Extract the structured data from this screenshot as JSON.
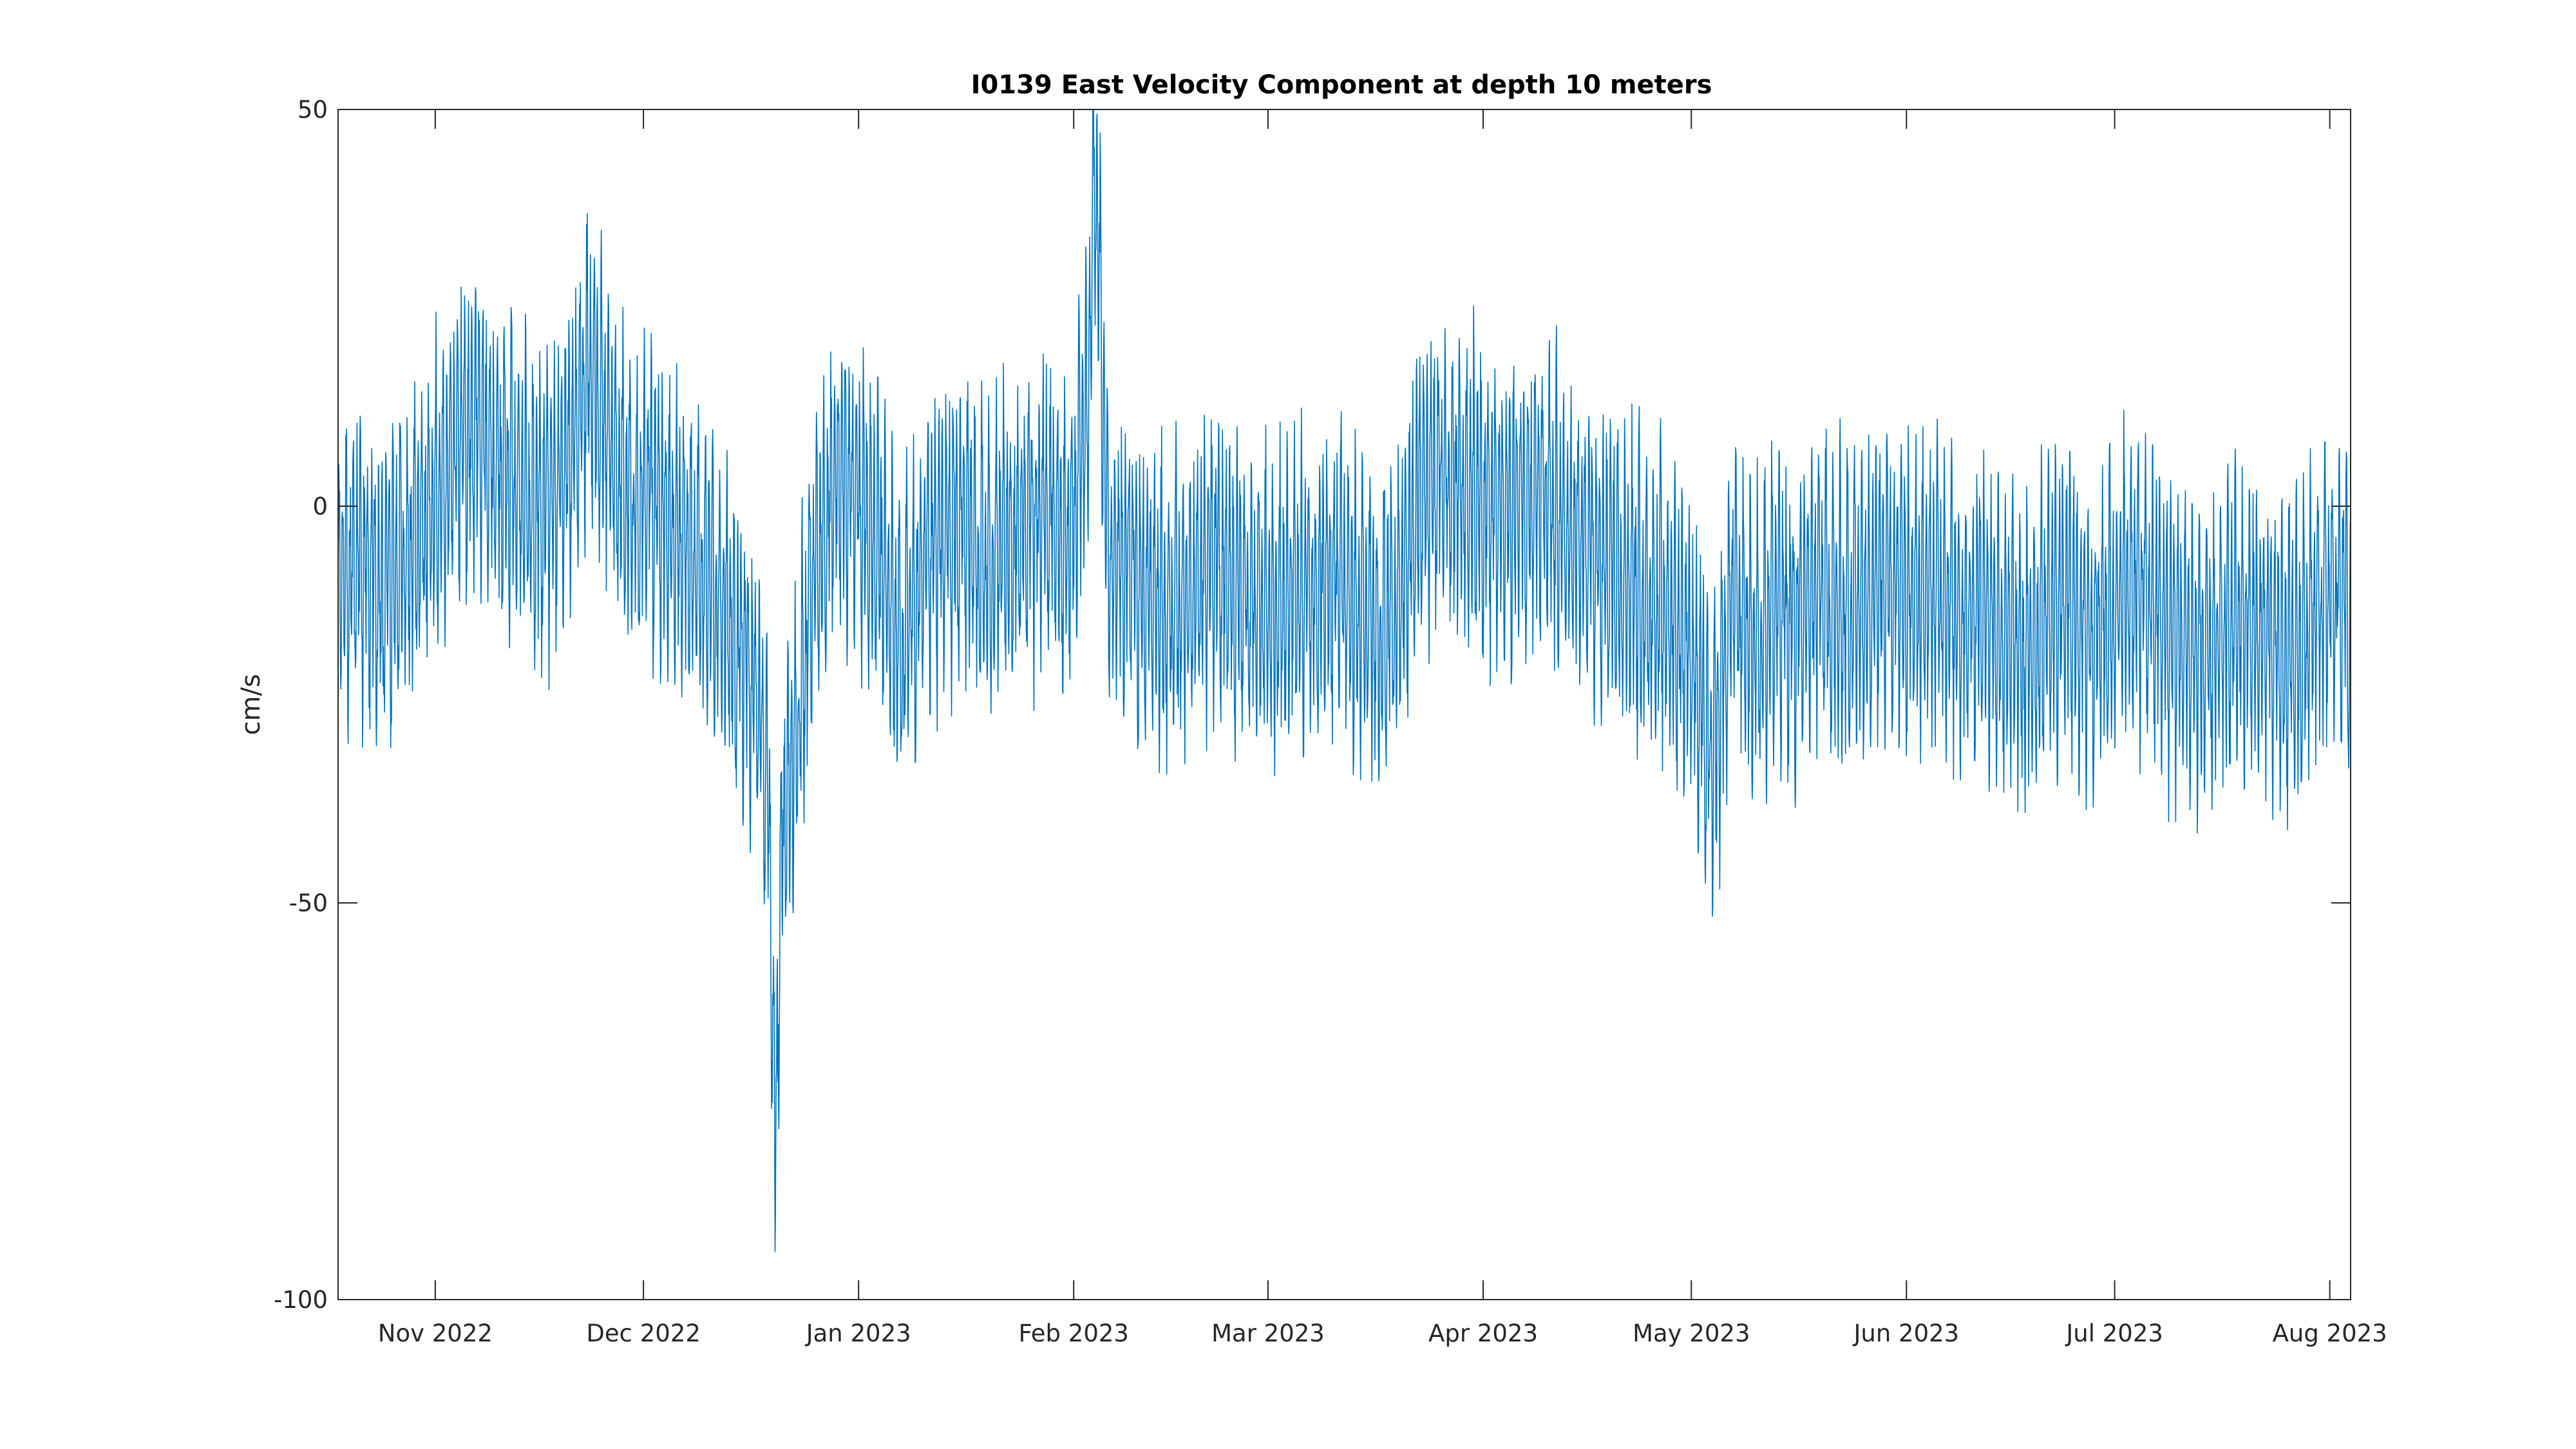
{
  "colors": {
    "background": "#ffffff",
    "axes": "#262626",
    "series": "#0072BD"
  },
  "chart_data": {
    "type": "line",
    "title": "I0139 East Velocity Component at depth 10 meters",
    "xlabel": "",
    "ylabel": "cm/s",
    "xlim": [
      "2022-10-18",
      "2023-08-04"
    ],
    "ylim": [
      -100,
      50
    ],
    "grid": false,
    "legend": "none",
    "yticks": [
      50,
      0,
      -50,
      -100
    ],
    "ytick_labels": [
      "50",
      "0",
      "-50",
      "-100"
    ],
    "xticks": [
      "2022-11-01",
      "2022-12-01",
      "2023-01-01",
      "2023-02-01",
      "2023-03-01",
      "2023-04-01",
      "2023-05-01",
      "2023-06-01",
      "2023-07-01",
      "2023-08-01"
    ],
    "xtick_labels": [
      "Nov 2022",
      "Dec 2022",
      "Jan 2023",
      "Feb 2023",
      "Mar 2023",
      "Apr 2023",
      "May 2023",
      "Jun 2023",
      "Jul 2023",
      "Aug 2023"
    ],
    "series": [
      {
        "x": [
          "2022-10-18",
          "2022-10-21",
          "2022-10-24",
          "2022-10-27",
          "2022-10-30",
          "2022-11-02",
          "2022-11-05",
          "2022-11-08",
          "2022-11-11",
          "2022-11-14",
          "2022-11-17",
          "2022-11-20",
          "2022-11-23",
          "2022-11-26",
          "2022-11-29",
          "2022-12-02",
          "2022-12-05",
          "2022-12-08",
          "2022-12-11",
          "2022-12-14",
          "2022-12-17",
          "2022-12-19",
          "2022-12-20",
          "2022-12-21",
          "2022-12-23",
          "2022-12-26",
          "2022-12-29",
          "2023-01-01",
          "2023-01-04",
          "2023-01-07",
          "2023-01-10",
          "2023-01-13",
          "2023-01-16",
          "2023-01-19",
          "2023-01-22",
          "2023-01-25",
          "2023-01-28",
          "2023-01-31",
          "2023-02-03",
          "2023-02-04",
          "2023-02-06",
          "2023-02-09",
          "2023-02-12",
          "2023-02-15",
          "2023-02-18",
          "2023-02-21",
          "2023-02-24",
          "2023-02-27",
          "2023-03-02",
          "2023-03-05",
          "2023-03-08",
          "2023-03-11",
          "2023-03-14",
          "2023-03-17",
          "2023-03-20",
          "2023-03-23",
          "2023-03-26",
          "2023-03-29",
          "2023-04-01",
          "2023-04-04",
          "2023-04-07",
          "2023-04-10",
          "2023-04-13",
          "2023-04-16",
          "2023-04-19",
          "2023-04-22",
          "2023-04-25",
          "2023-04-28",
          "2023-05-01",
          "2023-05-04",
          "2023-05-07",
          "2023-05-10",
          "2023-05-13",
          "2023-05-16",
          "2023-05-19",
          "2023-05-22",
          "2023-05-25",
          "2023-05-28",
          "2023-05-31",
          "2023-06-03",
          "2023-06-06",
          "2023-06-09",
          "2023-06-12",
          "2023-06-15",
          "2023-06-18",
          "2023-06-21",
          "2023-06-24",
          "2023-06-27",
          "2023-06-30",
          "2023-07-03",
          "2023-07-06",
          "2023-07-09",
          "2023-07-12",
          "2023-07-15",
          "2023-07-18",
          "2023-07-21",
          "2023-07-24",
          "2023-07-27",
          "2023-07-30",
          "2023-08-02",
          "2023-08-04"
        ],
        "y": [
          -10,
          -6,
          -12,
          -8,
          -4,
          2,
          10,
          8,
          3,
          2,
          -1,
          6,
          18,
          8,
          0,
          2,
          -4,
          -6,
          -10,
          -16,
          -22,
          -35,
          -82,
          -40,
          -30,
          -5,
          4,
          0,
          -6,
          -18,
          -10,
          -4,
          -2,
          -8,
          -6,
          -2,
          0,
          -5,
          10,
          45,
          -6,
          -8,
          -12,
          -14,
          -10,
          -8,
          -10,
          -12,
          -14,
          -10,
          -12,
          -8,
          -14,
          -16,
          -12,
          2,
          4,
          3,
          1,
          -2,
          2,
          0,
          -4,
          -6,
          -8,
          -10,
          -12,
          -14,
          -18,
          -34,
          -10,
          -18,
          -12,
          -16,
          -10,
          -14,
          -12,
          -8,
          -10,
          -12,
          -10,
          -14,
          -12,
          -16,
          -20,
          -14,
          -12,
          -16,
          -14,
          -10,
          -12,
          -16,
          -18,
          -20,
          -14,
          -16,
          -18,
          -20,
          -14,
          -10,
          -14
        ]
      }
    ]
  }
}
